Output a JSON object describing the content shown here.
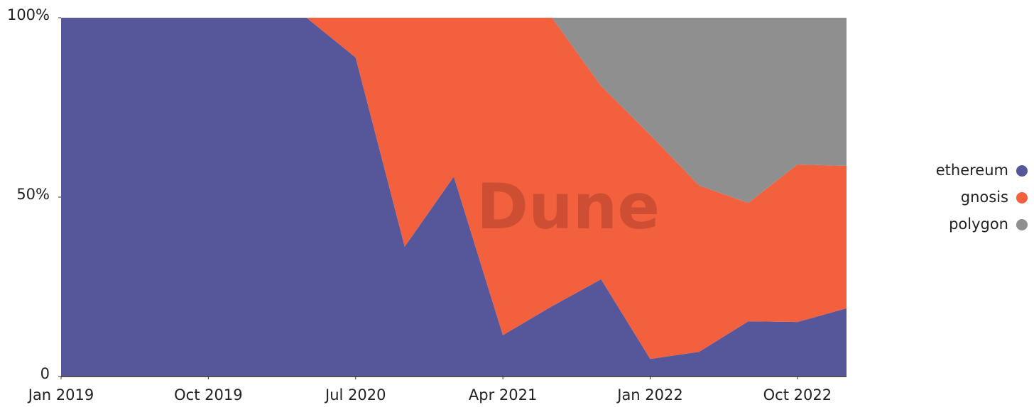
{
  "chart_data": {
    "type": "stacked_area_percent",
    "watermark": "Dune",
    "x": [
      "2019-01",
      "2019-04",
      "2019-07",
      "2019-10",
      "2020-01",
      "2020-04",
      "2020-07",
      "2020-10",
      "2021-01",
      "2021-04",
      "2021-07",
      "2021-10",
      "2022-01",
      "2022-04",
      "2022-07",
      "2022-10",
      "2023-01"
    ],
    "xlim": [
      "2019-01",
      "2023-01"
    ],
    "xticks": [
      {
        "value": "2019-01",
        "label": "Jan 2019"
      },
      {
        "value": "2019-10",
        "label": "Oct 2019"
      },
      {
        "value": "2020-07",
        "label": "Jul 2020"
      },
      {
        "value": "2021-04",
        "label": "Apr 2021"
      },
      {
        "value": "2022-01",
        "label": "Jan 2022"
      },
      {
        "value": "2022-10",
        "label": "Oct 2022"
      }
    ],
    "ylim": [
      0,
      100
    ],
    "yticks": [
      0,
      {
        "value": 50,
        "label": "50%"
      },
      {
        "value": 100,
        "label": "100%"
      }
    ],
    "legend": "right",
    "series": [
      {
        "name": "ethereum",
        "color": "#55579a",
        "values": [
          100,
          100,
          100,
          100,
          100,
          100,
          88.9,
          36.2,
          55.7,
          11.5,
          19.6,
          27.1,
          4.9,
          6.9,
          15.4,
          15.2,
          19
        ]
      },
      {
        "name": "gnosis",
        "color": "#f2603e",
        "values": [
          0,
          0,
          0,
          0,
          0,
          0,
          11.1,
          63.8,
          44.3,
          88.5,
          80.4,
          53.9,
          62.5,
          46.3,
          33,
          43.9,
          39.7
        ]
      },
      {
        "name": "polygon",
        "color": "#8f8f8f",
        "values": [
          0,
          0,
          0,
          0,
          0,
          0,
          0,
          0,
          0,
          0,
          0,
          19,
          32.6,
          46.8,
          51.6,
          40.9,
          41.3
        ]
      }
    ]
  }
}
